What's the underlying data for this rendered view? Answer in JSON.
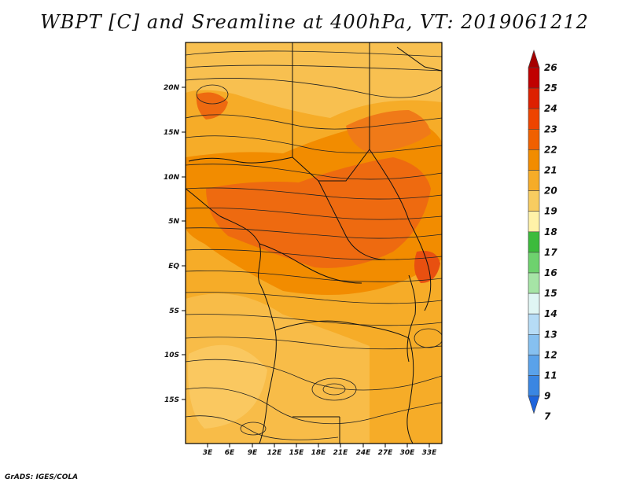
{
  "title": "WBPT [C] and Sreamline at 400hPa, VT: 2019061212",
  "credit": "GrADS: IGES/COLA",
  "map": {
    "lat_labels": [
      "20N",
      "15N",
      "10N",
      "5N",
      "EQ",
      "5S",
      "10S",
      "15S"
    ],
    "lon_labels": [
      "3E",
      "6E",
      "9E",
      "12E",
      "15E",
      "18E",
      "21E",
      "24E",
      "27E",
      "30E",
      "33E"
    ]
  },
  "colorbar": {
    "labels": [
      "26",
      "25",
      "24",
      "23",
      "22",
      "21",
      "20",
      "19",
      "18",
      "17",
      "16",
      "15",
      "14",
      "13",
      "12",
      "11",
      "9",
      "7"
    ],
    "colors": [
      "#a50000",
      "#c00000",
      "#dd2000",
      "#ee4400",
      "#f06000",
      "#f28c00",
      "#f6ac28",
      "#f8cc60",
      "#fff2a8",
      "#3cbb3c",
      "#6ed26e",
      "#a6e4a6",
      "#e0f6f4",
      "#b6dcf6",
      "#86c0f0",
      "#5aa2ea",
      "#3a86e2",
      "#1e64dc"
    ]
  }
}
